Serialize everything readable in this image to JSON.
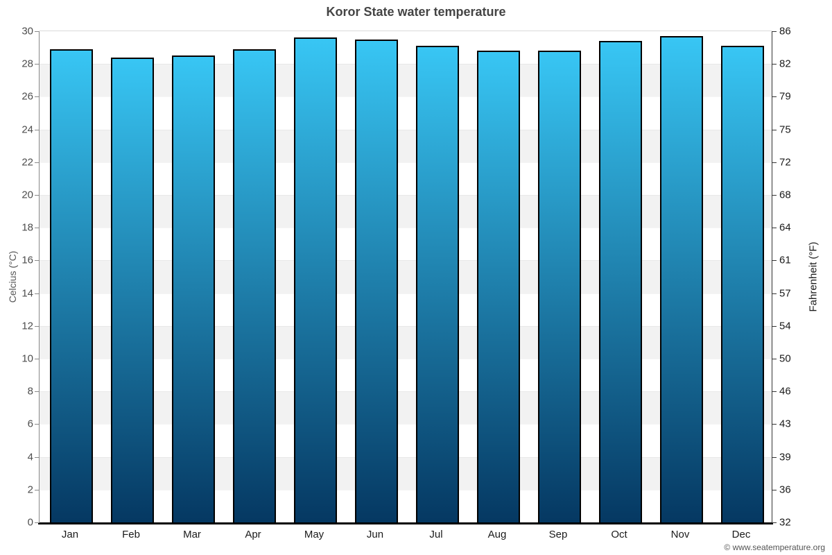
{
  "chart_data": {
    "type": "bar",
    "title": "Koror State water temperature",
    "categories": [
      "Jan",
      "Feb",
      "Mar",
      "Apr",
      "May",
      "Jun",
      "Jul",
      "Aug",
      "Sep",
      "Oct",
      "Nov",
      "Dec"
    ],
    "values": [
      28.9,
      28.4,
      28.5,
      28.9,
      29.6,
      29.5,
      29.1,
      28.8,
      28.8,
      29.4,
      29.7,
      29.1
    ],
    "unit": "°C",
    "xlabel": "",
    "ylabel_left": "Celcius (°C)",
    "ylabel_right": "Fahrenheit (°F)",
    "ylim": [
      0,
      30
    ],
    "yticks_left_celsius": [
      30,
      28,
      26,
      24,
      22,
      20,
      18,
      16,
      14,
      12,
      10,
      8,
      6,
      4,
      2,
      0
    ],
    "yticks_right_fahrenheit": [
      86,
      82,
      79,
      75,
      72,
      68,
      64,
      61,
      57,
      54,
      50,
      46,
      43,
      39,
      36,
      32
    ],
    "grid": "alternating-horizontal-bands-2C",
    "legend": "none"
  },
  "colors": {
    "bar_gradient_top": "#38c6f4",
    "bar_gradient_bottom": "#053862",
    "bar_border": "#000000",
    "band_gray": "#f2f2f2",
    "band_white": "#ffffff",
    "title_text": "#444444",
    "left_axis_text": "#4d4d4d",
    "right_axis_text": "#1a1a1a",
    "month_text": "#1a1a1a",
    "baseline": "#000000"
  },
  "footer": {
    "copyright": "© www.seatemperature.org"
  }
}
